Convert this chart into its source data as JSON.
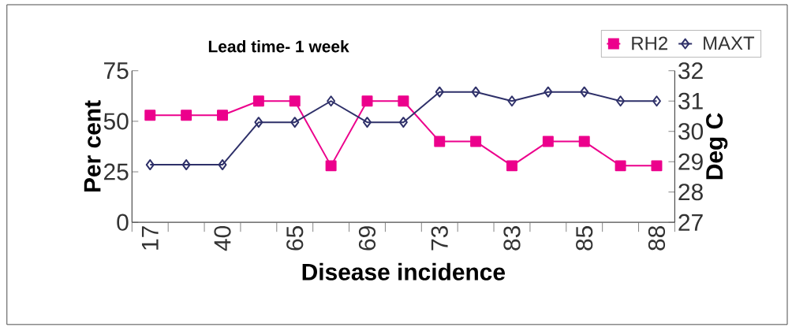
{
  "chart_data": {
    "type": "line",
    "title": "Lead time- 1 week",
    "xlabel": "Disease incidence",
    "ylabel": "Per cent",
    "y2label": "Deg C",
    "categories": [
      "17",
      null,
      "40",
      null,
      "65",
      null,
      "69",
      null,
      "73",
      null,
      "83",
      null,
      "85",
      null,
      "88"
    ],
    "series": [
      {
        "name": "RH2",
        "color": "#ec008c",
        "marker": "square",
        "values": [
          53,
          53,
          53,
          60,
          60,
          28,
          60,
          60,
          40,
          40,
          28,
          40,
          40,
          28,
          28
        ]
      },
      {
        "name": "MAXT",
        "color": "#2e3069",
        "marker": "diamond",
        "axis": "y2",
        "values": [
          28.9,
          28.9,
          28.9,
          30.3,
          30.3,
          31.0,
          30.3,
          30.3,
          31.3,
          31.3,
          31.0,
          31.3,
          31.3,
          31.0,
          31.0
        ]
      }
    ],
    "ylim": [
      0,
      75
    ],
    "yticks": [
      0,
      25,
      50,
      75
    ],
    "y2lim": [
      27,
      32
    ],
    "y2ticks": [
      27,
      28,
      29,
      30,
      31,
      32
    ],
    "legend": "top right",
    "grid": false,
    "line_style": "solid"
  }
}
